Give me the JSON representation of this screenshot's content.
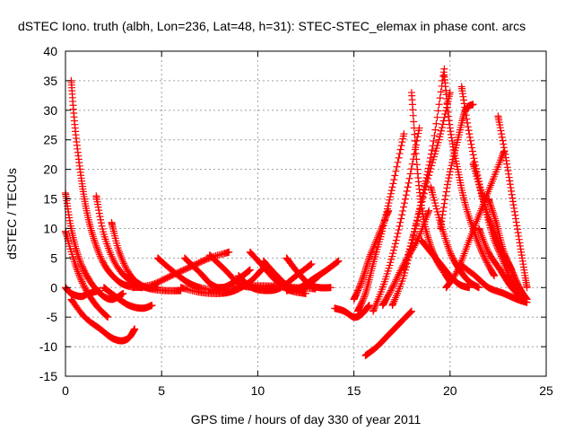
{
  "chart_data": {
    "type": "scatter",
    "title": "dSTEC Iono. truth (albh, Lon=236, Lat=48, h=31): STEC-STEC_elemax in phase cont. arcs",
    "xlabel": "GPS time / hours of day 330 of year 2011",
    "ylabel": "dSTEC  / TECUs",
    "xlim": [
      0,
      25
    ],
    "ylim": [
      -15,
      40
    ],
    "xticks": [
      0,
      5,
      10,
      15,
      20,
      25
    ],
    "yticks": [
      -15,
      -10,
      -5,
      0,
      5,
      10,
      15,
      20,
      25,
      30,
      35,
      40
    ],
    "grid": true,
    "marker": "+",
    "color": "#ff0000",
    "series": [
      {
        "x": [
          0.3,
          0.5,
          0.8,
          1.1,
          1.5,
          2.0,
          2.6,
          3.2,
          4.0
        ],
        "y": [
          35,
          27,
          19,
          13,
          8,
          4,
          1.5,
          0.3,
          0
        ]
      },
      {
        "x": [
          0.0,
          0.3,
          0.7,
          1.2,
          1.8,
          2.4,
          3.0
        ],
        "y": [
          16,
          10,
          5,
          1.5,
          -1,
          -2,
          -1
        ]
      },
      {
        "x": [
          0.0,
          0.5,
          1.0,
          1.6,
          2.2
        ],
        "y": [
          9.5,
          4,
          0,
          -3,
          -5
        ]
      },
      {
        "x": [
          0.0,
          0.3,
          0.8,
          1.2,
          1.8
        ],
        "y": [
          0,
          -1,
          -1.5,
          -1,
          -0.5
        ]
      },
      {
        "x": [
          0.3,
          1.0,
          1.8,
          2.4,
          2.9,
          3.3,
          3.6
        ],
        "y": [
          -2,
          -5,
          -7,
          -8.5,
          -9,
          -8.5,
          -7
        ]
      },
      {
        "x": [
          1.6,
          2.0,
          2.6,
          3.4,
          4.2,
          4.8
        ],
        "y": [
          15.5,
          9,
          4,
          1,
          0,
          0
        ]
      },
      {
        "x": [
          2.4,
          2.8,
          3.4,
          4.2,
          5.2,
          6.0
        ],
        "y": [
          11,
          6,
          2,
          0,
          -0.5,
          -0.5
        ]
      },
      {
        "x": [
          2.0,
          2.6,
          3.3,
          4.0,
          4.5
        ],
        "y": [
          0,
          -1.5,
          -3,
          -3.5,
          -3
        ]
      },
      {
        "x": [
          3.5,
          4.5,
          5.5,
          6.5,
          7.5,
          8.5
        ],
        "y": [
          0,
          0.5,
          2,
          3.5,
          5,
          6
        ]
      },
      {
        "x": [
          4.8,
          5.5,
          6.3,
          7.0,
          8.0
        ],
        "y": [
          5,
          3,
          1,
          0,
          -0.5
        ]
      },
      {
        "x": [
          6.2,
          7.0,
          7.6,
          8.2,
          9.0,
          9.6
        ],
        "y": [
          5,
          2.5,
          0.5,
          0,
          1.5,
          3
        ]
      },
      {
        "x": [
          6.0,
          7.0,
          8.0,
          8.8,
          9.6,
          10.2
        ],
        "y": [
          0,
          -0.8,
          -1,
          -0.5,
          1,
          3
        ]
      },
      {
        "x": [
          7.5,
          8.3,
          9.1,
          10.0,
          10.9
        ],
        "y": [
          5.5,
          3,
          0.5,
          0,
          0
        ]
      },
      {
        "x": [
          8.0,
          9.0,
          10.0,
          11.0,
          12.0,
          13.0
        ],
        "y": [
          0,
          0.2,
          0.3,
          0.2,
          0,
          -0.2
        ]
      },
      {
        "x": [
          9.0,
          9.7,
          10.5,
          11.2,
          12.0,
          12.8
        ],
        "y": [
          2,
          0,
          -0.5,
          0,
          2,
          4
        ]
      },
      {
        "x": [
          9.6,
          10.3,
          11.0,
          11.7,
          12.5
        ],
        "y": [
          6,
          3.5,
          1,
          -0.5,
          -1
        ]
      },
      {
        "x": [
          10.3,
          11.0,
          11.7,
          12.4,
          13.2
        ],
        "y": [
          4.5,
          2,
          0,
          0,
          2
        ]
      },
      {
        "x": [
          11.5,
          12.2,
          12.9,
          13.6,
          14.2
        ],
        "y": [
          -0.5,
          0,
          1.5,
          3,
          4.5
        ]
      },
      {
        "x": [
          11.5,
          12.1,
          12.7,
          13.2,
          13.8
        ],
        "y": [
          5,
          2.5,
          0.5,
          0,
          0
        ]
      },
      {
        "x": [
          14.0,
          14.5,
          15.0,
          15.4,
          15.8
        ],
        "y": [
          -3.5,
          -4,
          -5,
          -4.5,
          -3
        ]
      },
      {
        "x": [
          15.0,
          15.4,
          15.8,
          16.3,
          16.8
        ],
        "y": [
          -2,
          1,
          5,
          9,
          13
        ]
      },
      {
        "x": [
          15.2,
          15.6,
          16.0,
          16.5,
          17.0,
          17.6
        ],
        "y": [
          -4,
          -1,
          4,
          10,
          17,
          26
        ]
      },
      {
        "x": [
          16.0,
          16.6,
          17.2,
          17.8,
          18.4
        ],
        "y": [
          -4,
          1,
          8,
          17,
          27
        ]
      },
      {
        "x": [
          15.6,
          16.2,
          16.8,
          17.4,
          18.0
        ],
        "y": [
          -11.5,
          -10,
          -8,
          -6,
          -4
        ]
      },
      {
        "x": [
          17.0,
          17.6,
          18.2,
          18.9,
          19.5,
          20.0
        ],
        "y": [
          -3,
          2,
          10,
          19,
          26,
          33
        ]
      },
      {
        "x": [
          16.5,
          17.0,
          17.6,
          18.3,
          18.9
        ],
        "y": [
          -3,
          0,
          4,
          8,
          13
        ]
      },
      {
        "x": [
          17.6,
          18.1,
          18.6,
          19.1,
          19.7
        ],
        "y": [
          3,
          9,
          16,
          24,
          37
        ]
      },
      {
        "x": [
          18.0,
          18.3,
          18.6,
          19.0,
          19.4,
          20.0
        ],
        "y": [
          33,
          20,
          12,
          7,
          4,
          1
        ]
      },
      {
        "x": [
          18.5,
          19.0,
          19.5,
          20.0,
          20.5,
          21.0
        ],
        "y": [
          8,
          6,
          4,
          2,
          0.5,
          0
        ]
      },
      {
        "x": [
          19.0,
          19.5,
          20.0,
          20.5,
          21.0,
          21.5
        ],
        "y": [
          17,
          11,
          6,
          3,
          1,
          0
        ]
      },
      {
        "x": [
          19.7,
          20.0,
          20.4,
          20.8,
          21.3,
          21.8,
          22.3
        ],
        "y": [
          36,
          27,
          20,
          14,
          9,
          5,
          2
        ]
      },
      {
        "x": [
          19.5,
          19.9,
          20.4,
          20.8,
          21.2
        ],
        "y": [
          10,
          18,
          25,
          30,
          31
        ]
      },
      {
        "x": [
          20.6,
          21.0,
          21.5,
          22.0,
          22.6,
          23.2
        ],
        "y": [
          34,
          26,
          18,
          12,
          7,
          3
        ]
      },
      {
        "x": [
          19.8,
          20.4,
          21.0,
          21.6,
          22.2,
          22.8
        ],
        "y": [
          0,
          3,
          8,
          13,
          18,
          23
        ]
      },
      {
        "x": [
          21.2,
          21.7,
          22.2,
          22.7,
          23.2,
          23.7
        ],
        "y": [
          21,
          15,
          9,
          5,
          1,
          -1
        ]
      },
      {
        "x": [
          20.5,
          21.3,
          22.0,
          22.8,
          23.5,
          24.0
        ],
        "y": [
          4,
          2,
          0,
          -1,
          -2,
          -2.5
        ]
      },
      {
        "x": [
          22.5,
          22.9,
          23.3,
          23.7,
          24.0
        ],
        "y": [
          29,
          22,
          14,
          6,
          0
        ]
      },
      {
        "x": [
          21.5,
          22.0,
          22.6,
          23.2,
          23.8
        ],
        "y": [
          10,
          6,
          3,
          0,
          -2
        ]
      },
      {
        "x": [
          22.0,
          22.4,
          22.8,
          23.2,
          23.6,
          24.0
        ],
        "y": [
          15,
          11,
          6,
          3,
          0,
          -2
        ]
      }
    ]
  }
}
